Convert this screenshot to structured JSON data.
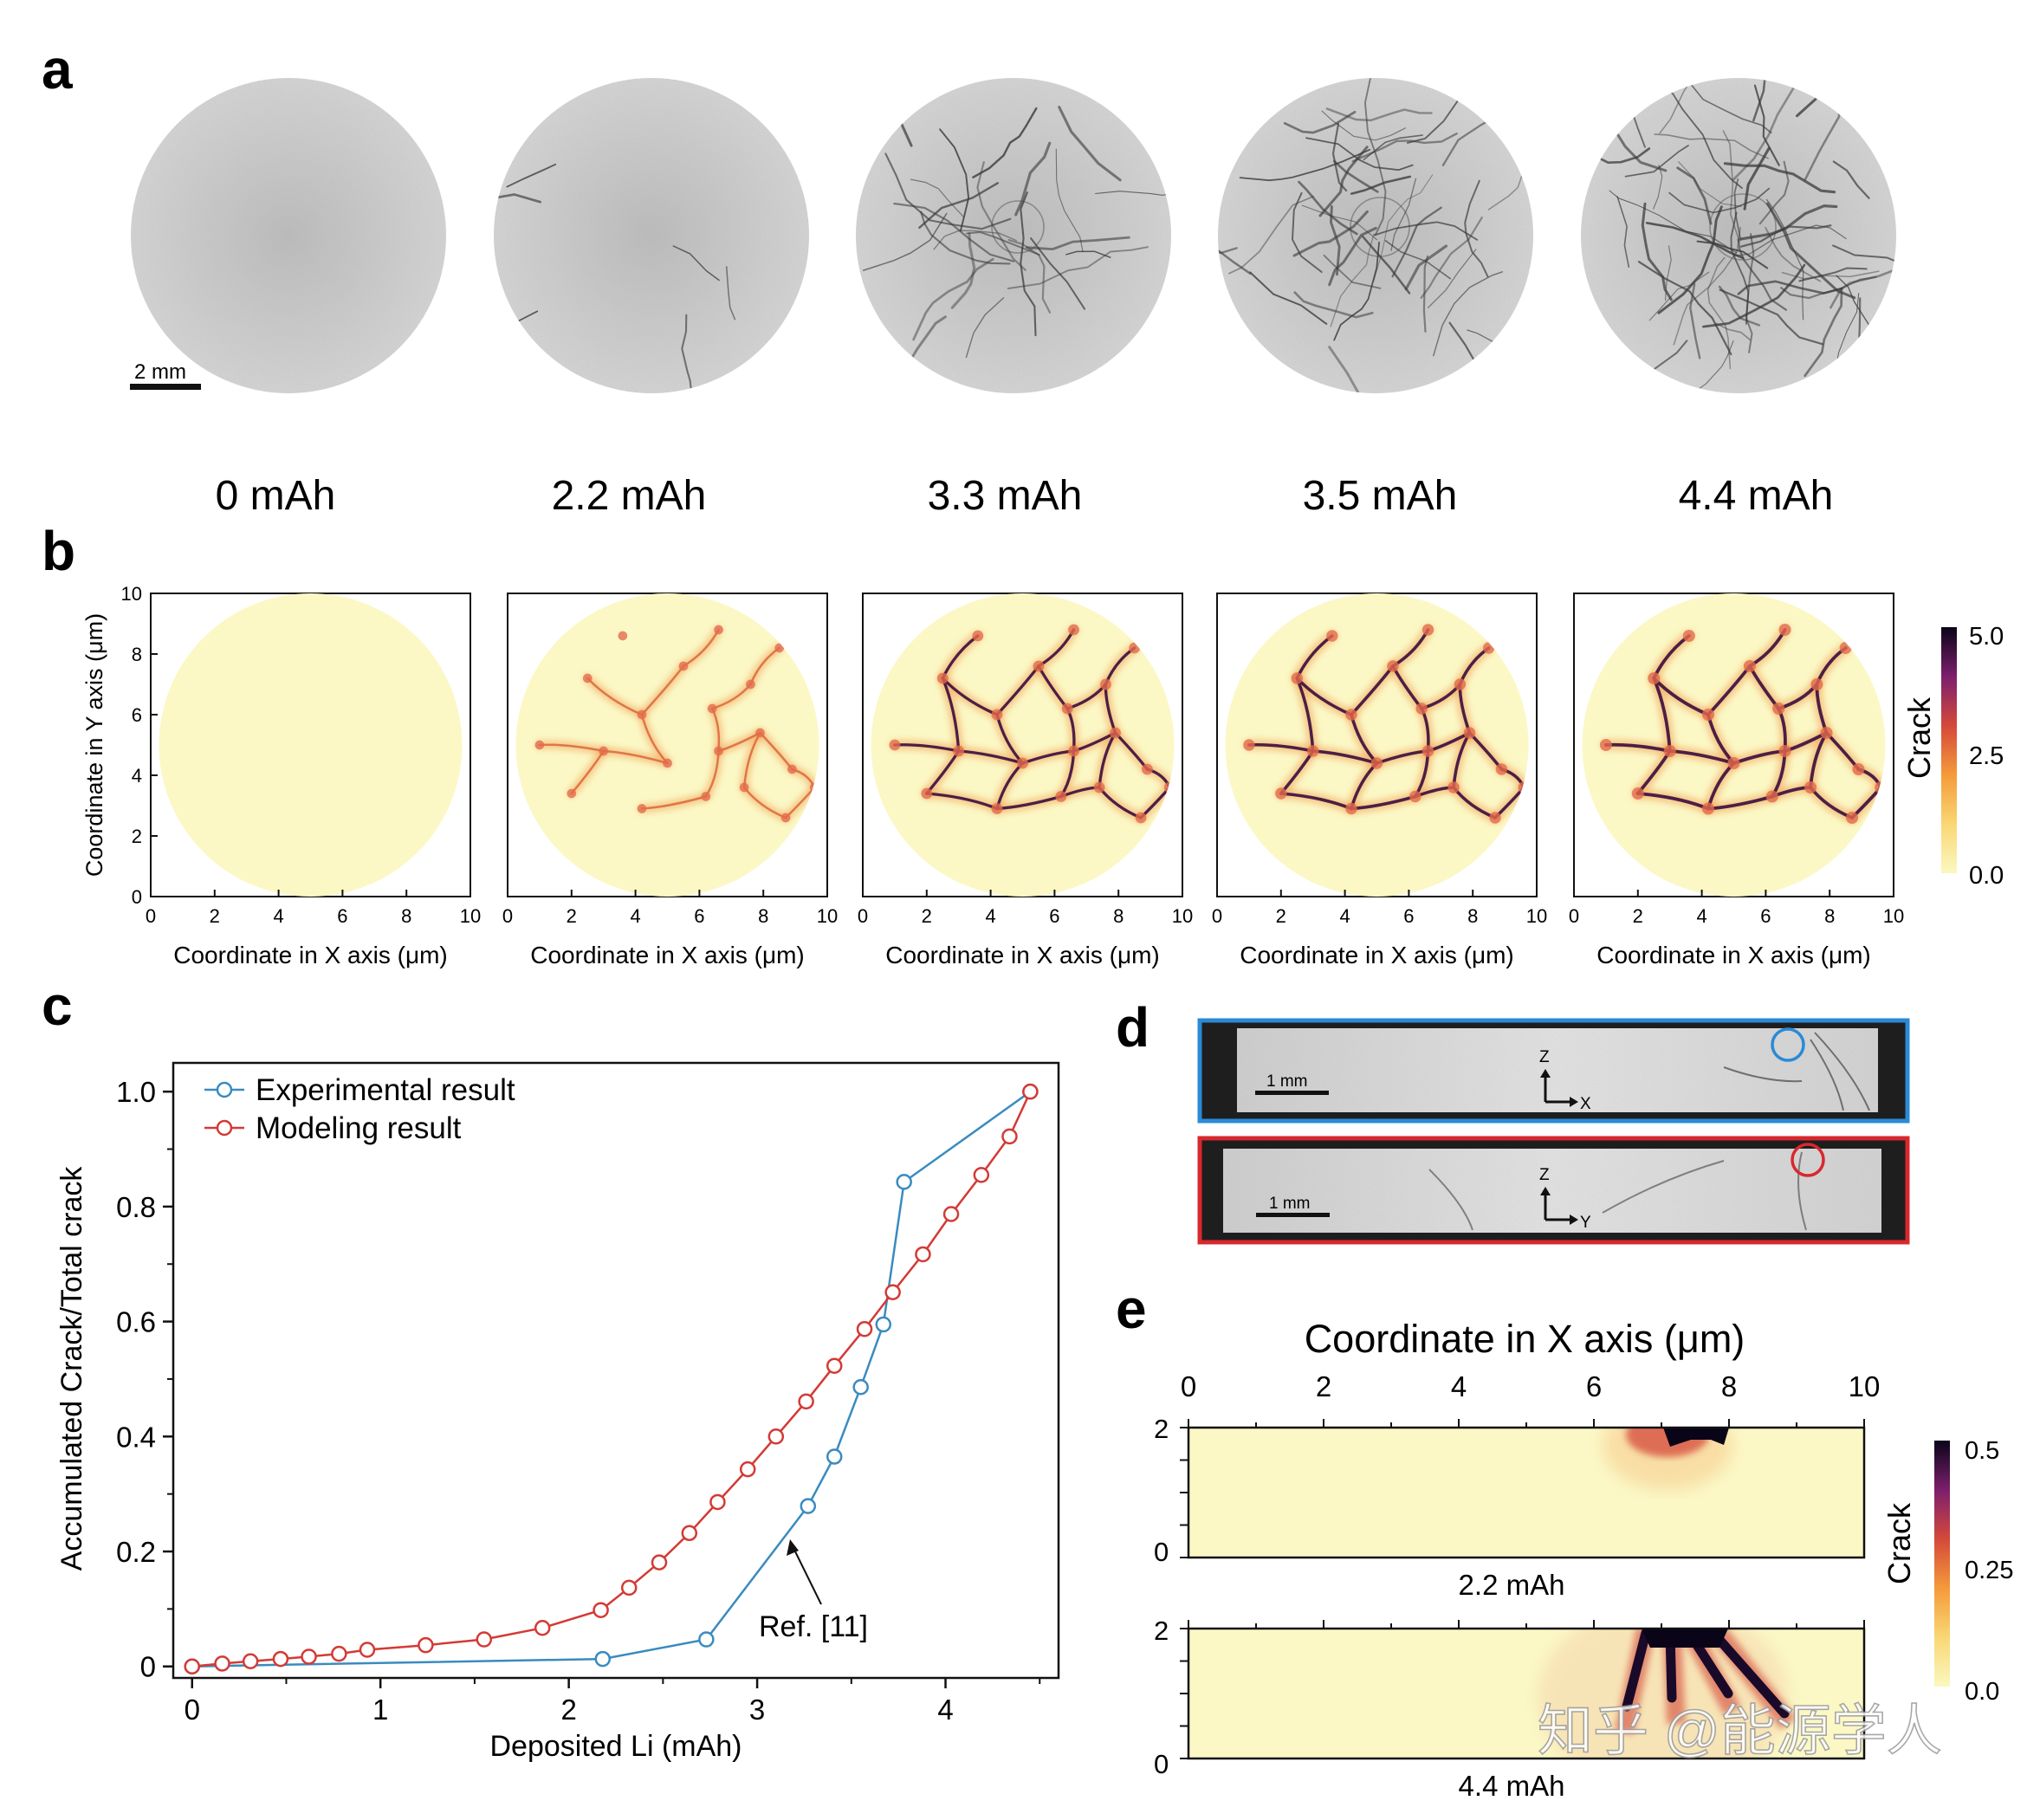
{
  "panel_letters": {
    "a": "a",
    "b": "b",
    "c": "c",
    "d": "d",
    "e": "e"
  },
  "panel_a": {
    "scale_bar": "2 mm",
    "labels": [
      "0 mAh",
      "2.2 mAh",
      "3.3 mAh",
      "3.5 mAh",
      "4.4 mAh"
    ]
  },
  "panel_b": {
    "xlabel": "Coordinate in X axis (μm)",
    "ylabel": "Coordinate in Y axis (μm)",
    "xticks": [
      "0",
      "2",
      "4",
      "6",
      "8",
      "10"
    ],
    "yticks": [
      "0",
      "2",
      "4",
      "6",
      "8",
      "10"
    ],
    "colorbar": {
      "label": "Crack",
      "ticks": [
        "5.0",
        "2.5",
        "0.0"
      ]
    }
  },
  "panel_d": {
    "top": {
      "scale": "1 mm",
      "axis_v": "Z",
      "axis_h": "X",
      "border": "#2a8ad6",
      "marker": "#2a8ad6"
    },
    "bottom": {
      "scale": "1 mm",
      "axis_v": "Z",
      "axis_h": "Y",
      "border": "#d8282e",
      "marker": "#d8282e"
    }
  },
  "panel_e": {
    "title": "Coordinate in X axis (μm)",
    "xticks": [
      "0",
      "2",
      "4",
      "6",
      "8",
      "10"
    ],
    "yticks": [
      "2",
      "0"
    ],
    "plot_labels": [
      "2.2 mAh",
      "4.4 mAh"
    ],
    "colorbar": {
      "label": "Crack",
      "ticks": [
        "0.5",
        "0.25",
        "0.0"
      ]
    }
  },
  "watermark": "知乎 @能源学人",
  "chart_data": {
    "type": "line",
    "xlabel": "Deposited Li (mAh)",
    "ylabel": "Accumulated Crack/Total crack",
    "xlim": [
      -0.1,
      4.6
    ],
    "ylim": [
      -0.02,
      1.05
    ],
    "xticks": [
      0,
      1,
      2,
      3,
      4
    ],
    "yticks": [
      0,
      0.2,
      0.4,
      0.6,
      0.8,
      1.0
    ],
    "ytick_labels": [
      "0",
      "0.2",
      "0.4",
      "0.6",
      "0.8",
      "1.0"
    ],
    "legend_position": "top-left",
    "annotation": "Ref. [11]",
    "series": [
      {
        "name": "Experimental result",
        "color": "#3a8bbf",
        "x": [
          0,
          2.18,
          2.73,
          3.27,
          3.41,
          3.55,
          3.67,
          3.78,
          4.45
        ],
        "y": [
          0,
          0.013,
          0.047,
          0.279,
          0.365,
          0.486,
          0.595,
          0.843,
          1.0
        ]
      },
      {
        "name": "Modeling result",
        "color": "#d33a35",
        "x": [
          0,
          0.16,
          0.31,
          0.47,
          0.62,
          0.78,
          0.93,
          1.24,
          1.55,
          1.86,
          2.17,
          2.32,
          2.48,
          2.64,
          2.79,
          2.95,
          3.1,
          3.26,
          3.41,
          3.57,
          3.72,
          3.88,
          4.03,
          4.19,
          4.34,
          4.45
        ],
        "y": [
          0,
          0.005,
          0.009,
          0.013,
          0.017,
          0.022,
          0.029,
          0.037,
          0.047,
          0.067,
          0.098,
          0.137,
          0.181,
          0.232,
          0.286,
          0.343,
          0.4,
          0.461,
          0.523,
          0.587,
          0.651,
          0.717,
          0.787,
          0.855,
          0.922,
          1.0
        ]
      }
    ]
  }
}
